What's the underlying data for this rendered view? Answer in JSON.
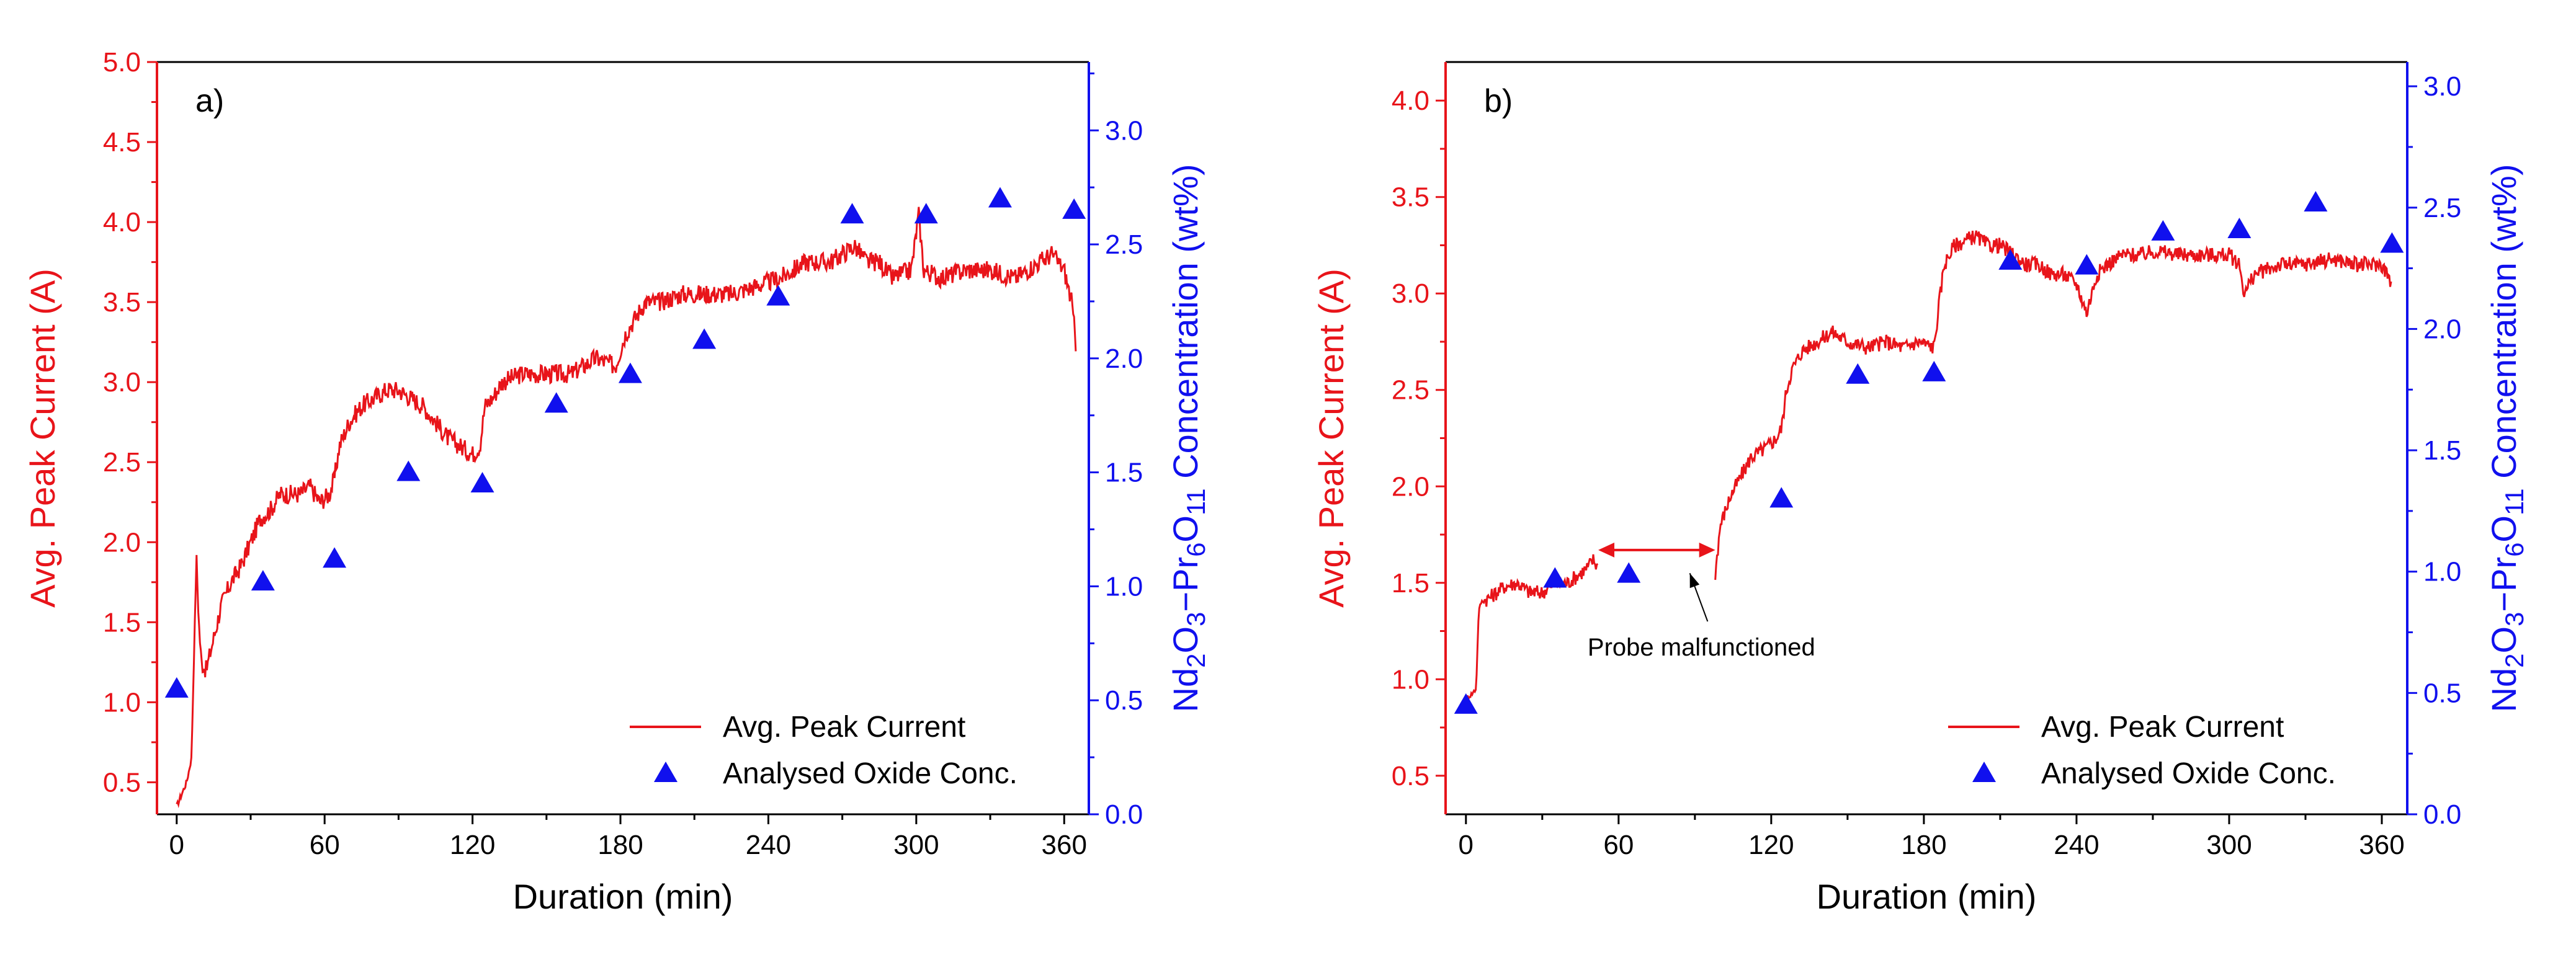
{
  "colors": {
    "current": "#e8141a",
    "oxide": "#1010ee",
    "axis": "#000000",
    "left_axis": "#e8141a",
    "right_axis": "#1010ee"
  },
  "chart_data": [
    {
      "type": "line",
      "panel_label": "a)",
      "xlabel": "Duration (min)",
      "ylabel_left": "Avg. Peak Current (A)",
      "ylabel_right": "Nd2O3−Pr6O11 Concentration (wt%)",
      "xlim": [
        -8,
        370
      ],
      "x_ticks": [
        0,
        60,
        120,
        180,
        240,
        300,
        360
      ],
      "x_tick_labels": [
        "0",
        "60",
        "120",
        "180",
        "240",
        "300",
        "360"
      ],
      "ylim_left": [
        0.3,
        5.0
      ],
      "y_left_ticks": [
        0.5,
        1.0,
        1.5,
        2.0,
        2.5,
        3.0,
        3.5,
        4.0,
        4.5,
        5.0
      ],
      "y_left_tick_labels": [
        "0.5",
        "1.0",
        "1.5",
        "2.0",
        "2.5",
        "3.0",
        "3.5",
        "4.0",
        "4.5",
        "5.0"
      ],
      "ylim_right": [
        0.0,
        3.3
      ],
      "y_right_ticks": [
        0.0,
        0.5,
        1.0,
        1.5,
        2.0,
        2.5,
        3.0
      ],
      "y_right_tick_labels": [
        "0.0",
        "0.5",
        "1.0",
        "1.5",
        "2.0",
        "2.5",
        "3.0"
      ],
      "legend": {
        "position": "bottom-right",
        "entries": [
          "Avg. Peak Current",
          "Analysed Oxide Conc."
        ]
      },
      "series": [
        {
          "name": "Avg. Peak Current",
          "kind": "line",
          "axis": "left",
          "noise": 0.06,
          "x": [
            0,
            4,
            6,
            8,
            9,
            10,
            12,
            15,
            18,
            22,
            26,
            30,
            34,
            38,
            42,
            46,
            50,
            54,
            58,
            62,
            64,
            66,
            70,
            75,
            80,
            85,
            90,
            95,
            100,
            105,
            110,
            115,
            120,
            123,
            125,
            128,
            132,
            140,
            150,
            160,
            170,
            178,
            182,
            186,
            190,
            196,
            205,
            215,
            225,
            235,
            245,
            255,
            265,
            270,
            275,
            280,
            285,
            290,
            298,
            301,
            303,
            310,
            320,
            330,
            340,
            350,
            355,
            360,
            363,
            365
          ],
          "y": [
            0.35,
            0.5,
            0.65,
            1.9,
            1.5,
            1.25,
            1.2,
            1.4,
            1.6,
            1.75,
            1.85,
            2.0,
            2.15,
            2.2,
            2.3,
            2.3,
            2.3,
            2.35,
            2.25,
            2.3,
            2.4,
            2.6,
            2.75,
            2.85,
            2.9,
            2.95,
            2.95,
            2.9,
            2.85,
            2.75,
            2.65,
            2.6,
            2.55,
            2.6,
            2.85,
            2.9,
            3.0,
            3.05,
            3.05,
            3.05,
            3.15,
            3.1,
            3.3,
            3.4,
            3.5,
            3.5,
            3.55,
            3.55,
            3.55,
            3.6,
            3.65,
            3.75,
            3.75,
            3.8,
            3.85,
            3.75,
            3.75,
            3.65,
            3.7,
            4.05,
            3.7,
            3.65,
            3.7,
            3.7,
            3.65,
            3.75,
            3.8,
            3.7,
            3.5,
            3.2
          ]
        },
        {
          "name": "Analysed Oxide Conc.",
          "kind": "scatter",
          "axis": "right",
          "x": [
            0,
            35,
            64,
            94,
            124,
            154,
            184,
            214,
            244,
            274,
            304,
            334,
            364
          ],
          "y": [
            0.55,
            1.02,
            1.12,
            1.5,
            1.45,
            1.8,
            1.93,
            2.08,
            2.27,
            2.63,
            2.63,
            2.7,
            2.65
          ]
        }
      ]
    },
    {
      "type": "line",
      "panel_label": "b)",
      "xlabel": "Duration (min)",
      "ylabel_left": "Avg. Peak Current (A)",
      "ylabel_right": "Nd2O3−Pr6O11 Concentration (wt%)",
      "xlim": [
        -8,
        370
      ],
      "x_ticks": [
        0,
        60,
        120,
        180,
        240,
        300,
        360
      ],
      "x_tick_labels": [
        "0",
        "60",
        "120",
        "180",
        "240",
        "300",
        "360"
      ],
      "ylim_left": [
        0.3,
        4.2
      ],
      "y_left_ticks": [
        0.5,
        1.0,
        1.5,
        2.0,
        2.5,
        3.0,
        3.5,
        4.0
      ],
      "y_left_tick_labels": [
        "0.5",
        "1.0",
        "1.5",
        "2.0",
        "2.5",
        "3.0",
        "3.5",
        "4.0"
      ],
      "ylim_right": [
        0.0,
        3.1
      ],
      "y_right_ticks": [
        0.0,
        0.5,
        1.0,
        1.5,
        2.0,
        2.5,
        3.0
      ],
      "y_right_tick_labels": [
        "0.0",
        "0.5",
        "1.0",
        "1.5",
        "2.0",
        "2.5",
        "3.0"
      ],
      "legend": {
        "position": "bottom-right",
        "entries": [
          "Avg. Peak Current",
          "Analysed Oxide Conc."
        ]
      },
      "annotation": {
        "text": "Probe malfunctioned",
        "gap_x": [
          52,
          98
        ],
        "gap_y": 1.67,
        "arrow_from_x": 95,
        "arrow_from_y": 1.3,
        "arrow_to_x": 88,
        "arrow_to_y": 1.55
      },
      "series": [
        {
          "name": "Avg. Peak Current",
          "kind": "line",
          "axis": "left",
          "noise": 0.04,
          "segments": [
            {
              "x": [
                0,
                2,
                4,
                5,
                6,
                10,
                15,
                20,
                25,
                30,
                35,
                40,
                45,
                48,
                50,
                52
              ],
              "y": [
                0.9,
                0.92,
                0.95,
                1.35,
                1.4,
                1.43,
                1.48,
                1.5,
                1.45,
                1.45,
                1.5,
                1.5,
                1.55,
                1.58,
                1.62,
                1.58
              ]
            },
            {
              "x": [
                98,
                100,
                104,
                108,
                112,
                118,
                122,
                124,
                126,
                128,
                132,
                138,
                144,
                150,
                158,
                165,
                172,
                178,
                184,
                186,
                188,
                192,
                196,
                200,
                205,
                210,
                215,
                220,
                225,
                230,
                235,
                240,
                244,
                246,
                248,
                252,
                258,
                265,
                272,
                280,
                290,
                300,
                304,
                306,
                310,
                320,
                330,
                340,
                350,
                360,
                364
              ],
              "y": [
                1.55,
                1.8,
                1.95,
                2.05,
                2.15,
                2.2,
                2.25,
                2.3,
                2.5,
                2.6,
                2.7,
                2.75,
                2.8,
                2.75,
                2.72,
                2.75,
                2.72,
                2.75,
                2.72,
                2.95,
                3.15,
                3.25,
                3.27,
                3.3,
                3.25,
                3.25,
                3.2,
                3.15,
                3.15,
                3.1,
                3.1,
                3.05,
                2.9,
                3.0,
                3.1,
                3.15,
                3.2,
                3.2,
                3.22,
                3.2,
                3.2,
                3.2,
                3.15,
                3.0,
                3.1,
                3.15,
                3.15,
                3.18,
                3.15,
                3.15,
                3.05
              ]
            }
          ]
        },
        {
          "name": "Analysed Oxide Conc.",
          "kind": "scatter",
          "axis": "right",
          "x": [
            0,
            35,
            64,
            124,
            154,
            184,
            214,
            244,
            274,
            304,
            334,
            364
          ],
          "y": [
            0.45,
            0.97,
            0.99,
            1.3,
            1.81,
            1.82,
            2.28,
            2.26,
            2.4,
            2.41,
            2.52,
            2.35
          ]
        }
      ]
    }
  ]
}
